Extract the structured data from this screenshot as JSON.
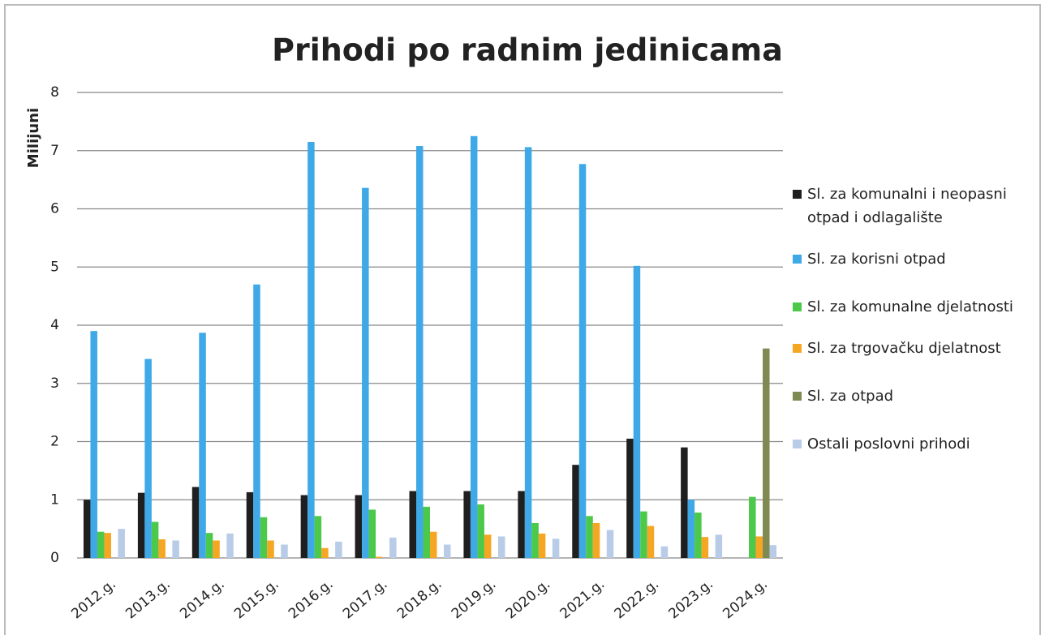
{
  "chart_data": {
    "type": "bar",
    "title": "Prihodi po radnim jedinicama",
    "ylabel": "Milijuni",
    "categories": [
      "2012.g.",
      "2013.g.",
      "2014.g.",
      "2015.g.",
      "2016.g.",
      "2017.g.",
      "2018.g.",
      "2019.g.",
      "2020.g.",
      "2021.g.",
      "2022.g.",
      "2023.g.",
      "2024.g."
    ],
    "series": [
      {
        "name": "Sl. za komunalni i neopasni otpad i odlagalište",
        "color": "#1f1f1f",
        "values": [
          1.0,
          1.12,
          1.22,
          1.13,
          1.08,
          1.08,
          1.15,
          1.15,
          1.15,
          1.6,
          2.05,
          1.9,
          null
        ]
      },
      {
        "name": "Sl. za korisni otpad",
        "color": "#3fa9e8",
        "values": [
          3.9,
          3.42,
          3.87,
          4.7,
          7.15,
          6.36,
          7.08,
          7.25,
          7.06,
          6.77,
          5.02,
          1.0,
          null
        ]
      },
      {
        "name": "Sl. za komunalne djelatnosti",
        "color": "#4cc84a",
        "values": [
          0.45,
          0.62,
          0.43,
          0.7,
          0.72,
          0.83,
          0.88,
          0.92,
          0.6,
          0.72,
          0.8,
          0.78,
          1.05
        ]
      },
      {
        "name": "Sl. za trgovačku djelatnost",
        "color": "#f5a623",
        "values": [
          0.43,
          0.32,
          0.3,
          0.3,
          0.17,
          0.02,
          0.45,
          0.4,
          0.42,
          0.6,
          0.55,
          0.36,
          0.37
        ]
      },
      {
        "name": "Sl. za otpad",
        "color": "#7f8a52",
        "values": [
          null,
          null,
          null,
          null,
          null,
          null,
          null,
          null,
          null,
          null,
          null,
          null,
          3.6
        ]
      },
      {
        "name": "Ostali poslovni prihodi",
        "color": "#b8cce8",
        "values": [
          0.5,
          0.3,
          0.42,
          0.23,
          0.28,
          0.35,
          0.23,
          0.37,
          0.33,
          0.48,
          0.2,
          0.4,
          0.22
        ]
      }
    ],
    "ylim": [
      0,
      8
    ],
    "yticks": [
      0,
      1,
      2,
      3,
      4,
      5,
      6,
      7,
      8
    ],
    "grid": true,
    "legend": "right"
  }
}
